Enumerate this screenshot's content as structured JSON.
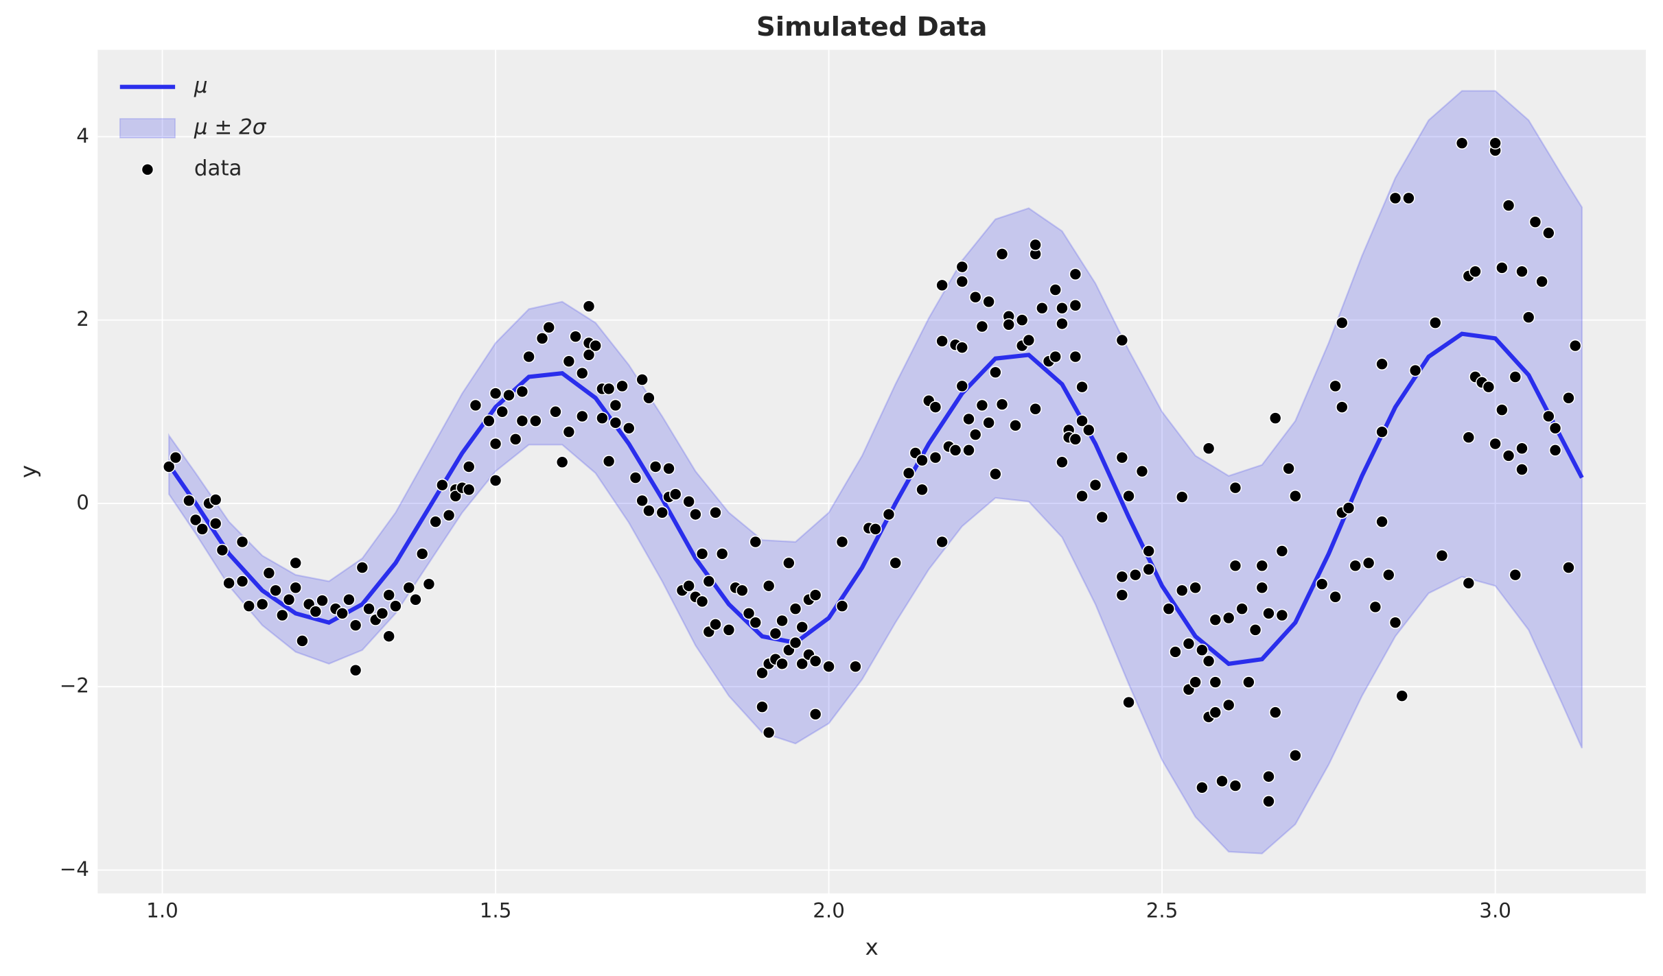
{
  "chart_data": {
    "type": "line",
    "title": "Simulated Data",
    "x_label": "x",
    "y_label": "y",
    "xlim": [
      0.903,
      3.226
    ],
    "ylim": [
      -4.254,
      4.948
    ],
    "xticks": [
      {
        "value": 1,
        "label": "1.0"
      },
      1.5,
      {
        "value": 2,
        "label": "2.0"
      },
      2.5,
      {
        "value": 3,
        "label": "3.0"
      }
    ],
    "yticks": [
      {
        "value": -4,
        "label": "−4"
      },
      {
        "value": -2,
        "label": "−2"
      },
      0,
      2,
      4
    ],
    "grid": true,
    "legend": "upper left",
    "x": [
      1.01,
      1.05,
      1.1,
      1.15,
      1.2,
      1.25,
      1.3,
      1.35,
      1.4,
      1.45,
      1.5,
      1.55,
      1.6,
      1.65,
      1.7,
      1.75,
      1.8,
      1.85,
      1.9,
      1.95,
      2.0,
      2.05,
      2.1,
      2.15,
      2.2,
      2.25,
      2.3,
      2.35,
      2.4,
      2.45,
      2.5,
      2.55,
      2.6,
      2.65,
      2.7,
      2.75,
      2.8,
      2.85,
      2.9,
      2.95,
      3.0,
      3.05,
      3.1,
      3.13
    ],
    "series": [
      {
        "name": "μ",
        "type": "line",
        "color": "#2a2eec",
        "values": [
          0.42,
          0.0,
          -0.55,
          -0.95,
          -1.2,
          -1.3,
          -1.1,
          -0.65,
          -0.05,
          0.55,
          1.05,
          1.38,
          1.42,
          1.15,
          0.65,
          0.05,
          -0.6,
          -1.1,
          -1.45,
          -1.52,
          -1.25,
          -0.7,
          0.0,
          0.65,
          1.2,
          1.58,
          1.62,
          1.3,
          0.65,
          -0.15,
          -0.9,
          -1.45,
          -1.75,
          -1.7,
          -1.3,
          -0.55,
          0.3,
          1.05,
          1.6,
          1.85,
          1.8,
          1.4,
          0.7,
          0.28
        ]
      },
      {
        "name": "μ ± 2σ",
        "type": "area",
        "color": "#2a2eec",
        "lower": [
          0.1,
          -0.33,
          -0.9,
          -1.33,
          -1.62,
          -1.75,
          -1.6,
          -1.2,
          -0.65,
          -0.1,
          0.35,
          0.64,
          0.64,
          0.33,
          -0.21,
          -0.85,
          -1.55,
          -2.1,
          -2.5,
          -2.62,
          -2.4,
          -1.92,
          -1.3,
          -0.72,
          -0.25,
          0.06,
          0.02,
          -0.37,
          -1.1,
          -1.97,
          -2.8,
          -3.42,
          -3.8,
          -3.82,
          -3.5,
          -2.85,
          -2.1,
          -1.45,
          -0.98,
          -0.8,
          -0.9,
          -1.38,
          -2.18,
          -2.67
        ],
        "upper": [
          0.74,
          0.33,
          -0.2,
          -0.57,
          -0.78,
          -0.85,
          -0.6,
          -0.1,
          0.55,
          1.2,
          1.75,
          2.12,
          2.2,
          1.97,
          1.51,
          0.95,
          0.35,
          -0.1,
          -0.4,
          -0.42,
          -0.1,
          0.52,
          1.3,
          2.02,
          2.65,
          3.1,
          3.22,
          2.97,
          2.4,
          1.67,
          1.0,
          0.52,
          0.3,
          0.42,
          0.9,
          1.75,
          2.7,
          3.55,
          4.18,
          4.5,
          4.5,
          4.18,
          3.58,
          3.23
        ]
      },
      {
        "name": "data",
        "type": "scatter",
        "color": "#000000",
        "x": [
          1.01,
          1.02,
          1.04,
          1.05,
          1.06,
          1.07,
          1.08,
          1.08,
          1.09,
          1.1,
          1.12,
          1.12,
          1.13,
          1.15,
          1.16,
          1.17,
          1.18,
          1.19,
          1.2,
          1.2,
          1.21,
          1.22,
          1.23,
          1.24,
          1.26,
          1.27,
          1.28,
          1.29,
          1.29,
          1.3,
          1.31,
          1.32,
          1.33,
          1.34,
          1.34,
          1.35,
          1.37,
          1.38,
          1.39,
          1.4,
          1.41,
          1.42,
          1.43,
          1.44,
          1.44,
          1.45,
          1.46,
          1.46,
          1.47,
          1.49,
          1.5,
          1.5,
          1.5,
          1.51,
          1.52,
          1.53,
          1.54,
          1.54,
          1.55,
          1.56,
          1.57,
          1.58,
          1.59,
          1.6,
          1.61,
          1.61,
          1.62,
          1.63,
          1.63,
          1.64,
          1.64,
          1.64,
          1.65,
          1.66,
          1.66,
          1.67,
          1.67,
          1.68,
          1.68,
          1.69,
          1.7,
          1.71,
          1.72,
          1.72,
          1.73,
          1.73,
          1.74,
          1.75,
          1.76,
          1.76,
          1.77,
          1.78,
          1.79,
          1.79,
          1.8,
          1.8,
          1.81,
          1.81,
          1.82,
          1.82,
          1.83,
          1.83,
          1.84,
          1.85,
          1.86,
          1.87,
          1.88,
          1.89,
          1.89,
          1.9,
          1.9,
          1.91,
          1.91,
          1.91,
          1.92,
          1.92,
          1.93,
          1.93,
          1.94,
          1.94,
          1.95,
          1.95,
          1.96,
          1.96,
          1.97,
          1.97,
          1.98,
          1.98,
          1.98,
          2.0,
          2.02,
          2.02,
          2.04,
          2.06,
          2.07,
          2.09,
          2.1,
          2.12,
          2.13,
          2.14,
          2.14,
          2.15,
          2.16,
          2.16,
          2.17,
          2.17,
          2.17,
          2.18,
          2.19,
          2.19,
          2.2,
          2.2,
          2.2,
          2.2,
          2.21,
          2.21,
          2.22,
          2.22,
          2.23,
          2.23,
          2.24,
          2.24,
          2.25,
          2.25,
          2.26,
          2.26,
          2.27,
          2.27,
          2.28,
          2.29,
          2.29,
          2.3,
          2.31,
          2.31,
          2.31,
          2.32,
          2.33,
          2.34,
          2.34,
          2.35,
          2.35,
          2.35,
          2.36,
          2.36,
          2.37,
          2.37,
          2.37,
          2.37,
          2.38,
          2.38,
          2.38,
          2.39,
          2.4,
          2.41,
          2.44,
          2.44,
          2.44,
          2.44,
          2.45,
          2.45,
          2.46,
          2.47,
          2.48,
          2.48,
          2.51,
          2.52,
          2.53,
          2.53,
          2.54,
          2.54,
          2.55,
          2.55,
          2.56,
          2.56,
          2.57,
          2.57,
          2.57,
          2.58,
          2.58,
          2.58,
          2.59,
          2.6,
          2.6,
          2.61,
          2.61,
          2.61,
          2.62,
          2.63,
          2.64,
          2.65,
          2.65,
          2.66,
          2.66,
          2.66,
          2.67,
          2.67,
          2.68,
          2.68,
          2.69,
          2.7,
          2.7,
          2.74,
          2.76,
          2.76,
          2.77,
          2.77,
          2.77,
          2.78,
          2.79,
          2.81,
          2.82,
          2.83,
          2.83,
          2.83,
          2.84,
          2.85,
          2.85,
          2.86,
          2.87,
          2.88,
          2.91,
          2.92,
          2.95,
          2.96,
          2.96,
          2.96,
          2.97,
          2.97,
          2.98,
          2.99,
          3.0,
          3.0,
          3.0,
          3.01,
          3.01,
          3.02,
          3.02,
          3.03,
          3.03,
          3.04,
          3.04,
          3.04,
          3.05,
          3.06,
          3.07,
          3.08,
          3.08,
          3.09,
          3.09,
          3.11,
          3.11,
          3.12
        ],
        "values": [
          0.4,
          0.5,
          0.03,
          -0.18,
          -0.28,
          0.0,
          0.04,
          -0.22,
          -0.51,
          -0.87,
          -0.85,
          -0.42,
          -1.12,
          -1.1,
          -0.76,
          -0.95,
          -1.22,
          -1.05,
          -0.65,
          -0.92,
          -1.5,
          -1.1,
          -1.18,
          -1.06,
          -1.15,
          -1.2,
          -1.05,
          -1.33,
          -1.82,
          -0.7,
          -1.15,
          -1.27,
          -1.2,
          -1.0,
          -1.45,
          -1.12,
          -0.92,
          -1.05,
          -0.55,
          -0.88,
          -0.2,
          0.2,
          -0.13,
          0.15,
          0.08,
          0.17,
          0.4,
          0.15,
          1.07,
          0.9,
          1.2,
          0.65,
          0.25,
          1.0,
          1.18,
          0.7,
          0.9,
          1.22,
          1.6,
          0.9,
          1.8,
          1.92,
          1.0,
          0.45,
          1.55,
          0.78,
          1.82,
          1.42,
          0.95,
          2.15,
          1.75,
          1.62,
          1.72,
          0.93,
          1.25,
          1.25,
          0.46,
          1.07,
          0.88,
          1.28,
          0.82,
          0.28,
          1.35,
          0.03,
          1.15,
          -0.08,
          0.4,
          -0.1,
          0.38,
          0.07,
          0.1,
          -0.95,
          -0.9,
          0.02,
          -1.02,
          -0.12,
          -0.55,
          -1.07,
          -0.85,
          -1.4,
          -1.32,
          -0.1,
          -0.55,
          -1.38,
          -0.92,
          -0.95,
          -1.2,
          -1.3,
          -0.42,
          -1.85,
          -2.22,
          -1.75,
          -0.9,
          -2.5,
          -1.42,
          -1.7,
          -1.28,
          -1.75,
          -1.6,
          -0.65,
          -1.15,
          -1.52,
          -1.35,
          -1.75,
          -1.05,
          -1.65,
          -2.3,
          -1.0,
          -1.72,
          -1.78,
          -1.12,
          -0.42,
          -1.78,
          -0.27,
          -0.28,
          -0.12,
          -0.65,
          0.33,
          0.55,
          0.47,
          0.15,
          1.12,
          1.05,
          0.5,
          1.77,
          2.38,
          -0.42,
          0.62,
          1.73,
          0.58,
          2.58,
          2.42,
          1.7,
          1.28,
          0.58,
          0.92,
          0.75,
          2.25,
          1.07,
          1.93,
          2.2,
          0.88,
          1.43,
          0.32,
          1.08,
          2.72,
          2.04,
          1.95,
          0.85,
          1.72,
          2.0,
          1.78,
          1.03,
          2.72,
          2.82,
          2.13,
          1.55,
          2.33,
          1.6,
          1.96,
          2.13,
          0.45,
          0.8,
          0.72,
          0.7,
          1.6,
          2.5,
          2.16,
          1.27,
          0.08,
          0.9,
          0.8,
          0.2,
          -0.15,
          1.78,
          0.5,
          -0.8,
          -1.0,
          -2.17,
          0.08,
          -0.78,
          0.35,
          -0.52,
          -0.72,
          -1.15,
          -1.62,
          -0.95,
          0.07,
          -1.53,
          -2.03,
          -1.95,
          -0.92,
          -1.6,
          -3.1,
          -1.72,
          0.6,
          -2.33,
          -1.27,
          -1.95,
          -2.28,
          -3.03,
          -2.2,
          -1.25,
          -0.68,
          0.17,
          -3.08,
          -1.15,
          -1.95,
          -1.38,
          -0.68,
          -0.92,
          -3.25,
          -2.98,
          -1.2,
          -2.28,
          0.93,
          -0.52,
          -1.22,
          0.38,
          -2.75,
          0.08,
          -0.88,
          1.28,
          -1.02,
          -0.1,
          1.05,
          1.97,
          -0.05,
          -0.68,
          -0.65,
          -1.13,
          -0.2,
          0.78,
          1.52,
          -0.78,
          -1.3,
          3.33,
          -2.1,
          3.33,
          1.45,
          1.97,
          -0.57,
          3.93,
          -0.87,
          0.72,
          2.48,
          2.53,
          1.38,
          1.32,
          1.27,
          0.65,
          3.85,
          3.93,
          1.02,
          2.57,
          3.25,
          0.52,
          1.38,
          -0.78,
          2.53,
          0.37,
          0.6,
          2.03,
          3.07,
          2.42,
          2.95,
          0.95,
          0.82,
          0.58,
          -0.7,
          1.15,
          1.72
        ]
      }
    ]
  }
}
